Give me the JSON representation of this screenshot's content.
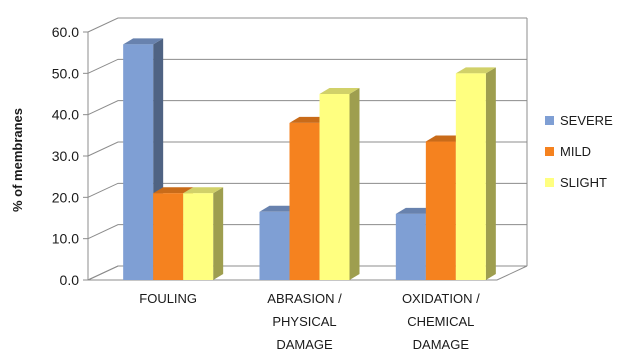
{
  "chart_data": {
    "type": "bar",
    "title": "",
    "xlabel": "",
    "ylabel": "% of membranes",
    "ylim": [
      0,
      60
    ],
    "yticks": [
      "0.0",
      "10.0",
      "20.0",
      "30.0",
      "40.0",
      "50.0",
      "60.0"
    ],
    "categories": [
      [
        "FOULING"
      ],
      [
        "ABRASION /",
        "PHYSICAL",
        "DAMAGE"
      ],
      [
        "OXIDATION /",
        "CHEMICAL",
        "DAMAGE"
      ]
    ],
    "series": [
      {
        "name": "SEVERE",
        "values": [
          57.0,
          16.5,
          16.0
        ],
        "color": "#7f9fd4"
      },
      {
        "name": "MILD",
        "values": [
          21.0,
          38.0,
          33.5
        ],
        "color": "#f5821f"
      },
      {
        "name": "SLIGHT",
        "values": [
          21.0,
          45.0,
          50.0
        ],
        "color": "#ffff80"
      }
    ],
    "grid": true,
    "legend_position": "right",
    "style": "3d-clustered-column"
  }
}
